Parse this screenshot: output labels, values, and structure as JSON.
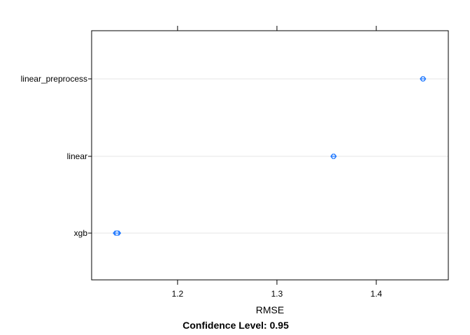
{
  "chart_data": {
    "type": "scatter",
    "title": "",
    "xlabel": "RMSE",
    "sublabel": "Confidence Level: 0.95",
    "xlim": [
      1.1135,
      1.4725
    ],
    "xticks": [
      {
        "value": 1.2,
        "label": "1.2"
      },
      {
        "value": 1.3,
        "label": "1.3"
      },
      {
        "value": 1.4,
        "label": "1.4"
      }
    ],
    "categories": [
      "linear_preprocess",
      "linear",
      "xgb"
    ],
    "points": [
      {
        "label": "linear_preprocess",
        "value": 1.447,
        "lower": 1.445,
        "upper": 1.449
      },
      {
        "label": "linear",
        "value": 1.357,
        "lower": 1.355,
        "upper": 1.359
      },
      {
        "label": "xgb",
        "value": 1.139,
        "lower": 1.136,
        "upper": 1.142
      }
    ],
    "grid": true,
    "colors": {
      "point": "#1a75ff",
      "grid": "#e6e6e6",
      "axis": "#000000"
    }
  }
}
